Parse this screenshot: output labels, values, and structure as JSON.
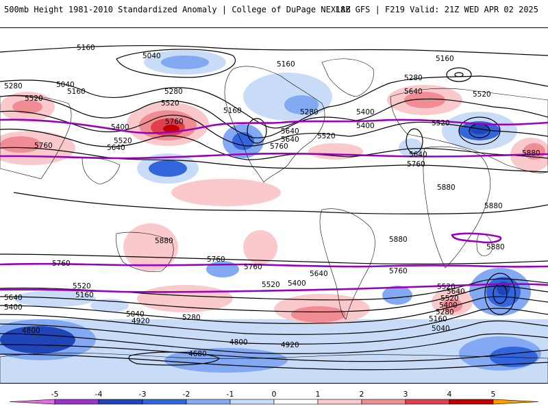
{
  "header": {
    "title": "500mb Height 1981-2010 Standardized Anomaly | College of DuPage NEXLAB",
    "run_info": "18Z GFS | F219 Valid: 21Z WED APR 02 2025"
  },
  "contour_labels": [
    "5160",
    "5040",
    "5160",
    "5280",
    "5040",
    "5160",
    "5520",
    "5280",
    "5520",
    "5760",
    "5400",
    "5640",
    "5160",
    "5520",
    "5760",
    "5640",
    "5400",
    "5280",
    "5640",
    "5520",
    "5160",
    "5280",
    "5400",
    "5640",
    "5520",
    "5520",
    "5760",
    "5640",
    "5760",
    "5880",
    "5880",
    "5880",
    "5880",
    "5880",
    "5760",
    "5760",
    "5760",
    "5640",
    "5760",
    "5520",
    "5520",
    "5640",
    "5400",
    "5520",
    "5400",
    "5280",
    "5160",
    "5040",
    "4920",
    "4800",
    "4680",
    "4800",
    "4920",
    "5040",
    "5160",
    "5280",
    "5400",
    "5520",
    "5640",
    "5880"
  ],
  "colorbar": {
    "ticks": [
      "-5",
      "-4",
      "-3",
      "-2",
      "-1",
      "0",
      "1",
      "2",
      "3",
      "4",
      "5"
    ],
    "colors": {
      "neg_tip": "#e070e0",
      "neg5": "#9933cc",
      "neg4": "#1f45b8",
      "neg3": "#3366dd",
      "neg2": "#82a9f2",
      "neg1": "#c8dcf8",
      "zero": "#ffffff",
      "pos1": "#f9c9cc",
      "pos2": "#f08c94",
      "pos3": "#e0404c",
      "pos4": "#c00000",
      "pos5": "#ff9e00",
      "pos_tip": "#ffcc33"
    }
  },
  "map": {
    "highlight_color": "#9900bb",
    "contour_color": "#000000"
  }
}
